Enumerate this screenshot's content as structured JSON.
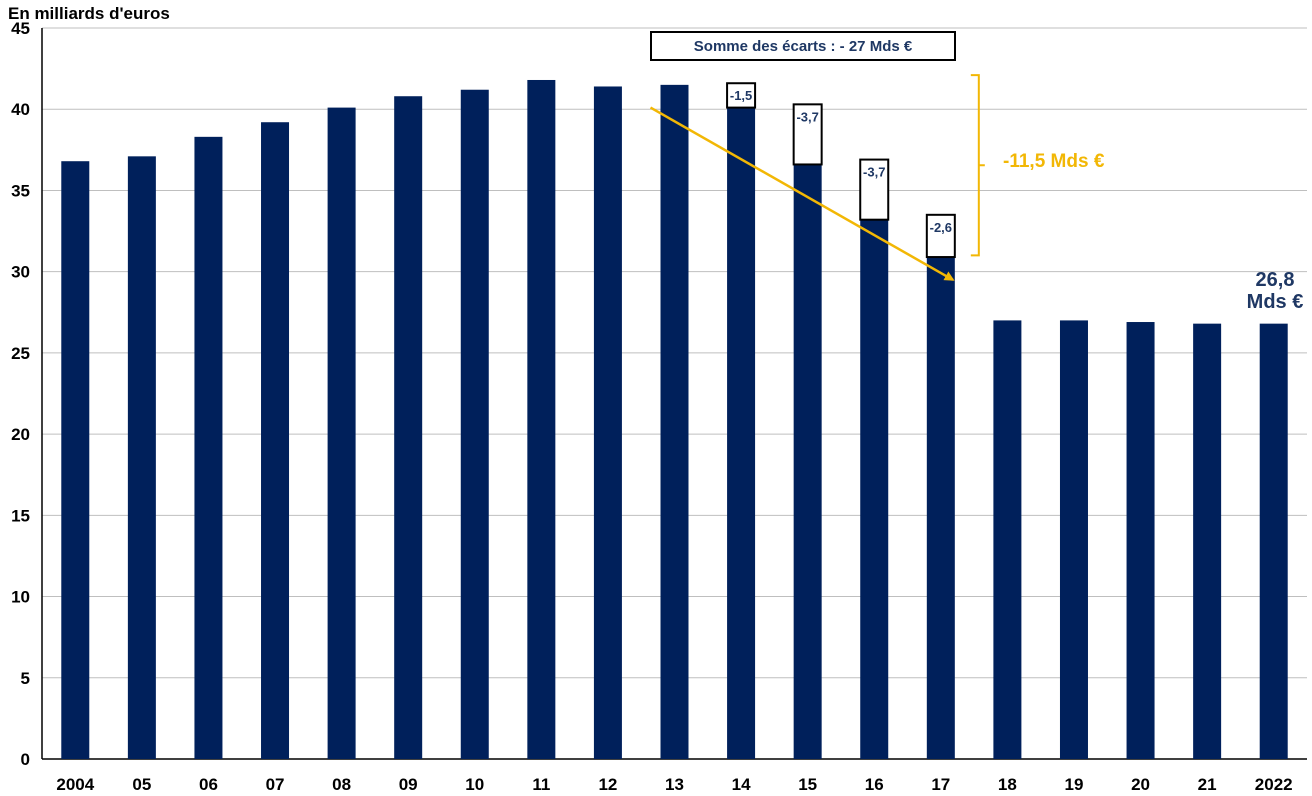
{
  "chart_data": {
    "type": "bar",
    "ylabel": "En milliards d'euros",
    "ylim": [
      0,
      45
    ],
    "yticks": [
      0,
      5,
      10,
      15,
      20,
      25,
      30,
      35,
      40,
      45
    ],
    "grid": true,
    "categories": [
      "2004",
      "05",
      "06",
      "07",
      "08",
      "09",
      "10",
      "11",
      "12",
      "13",
      "14",
      "15",
      "16",
      "17",
      "18",
      "19",
      "20",
      "21",
      "2022"
    ],
    "values": [
      36.8,
      37.1,
      38.3,
      39.2,
      40.1,
      40.8,
      41.2,
      41.8,
      41.4,
      41.5,
      40.1,
      36.6,
      33.2,
      30.9,
      27.0,
      27.0,
      26.9,
      26.8,
      26.8
    ],
    "gaps": [
      {
        "category": "14",
        "value": -1.5,
        "label": "-1,5"
      },
      {
        "category": "15",
        "value": -3.7,
        "label": "-3,7"
      },
      {
        "category": "16",
        "value": -3.7,
        "label": "-3,7"
      },
      {
        "category": "17",
        "value": -2.6,
        "label": "-2,6"
      }
    ],
    "bar_color": "#00205b",
    "accent_color": "#f2b705",
    "label_color": "#1f3864"
  },
  "annotations": {
    "sum_box": "Somme des écarts  :  - 27 Mds €",
    "brace_label": "-11,5 Mds €",
    "last_value": "26,8",
    "last_unit": "Mds €"
  }
}
